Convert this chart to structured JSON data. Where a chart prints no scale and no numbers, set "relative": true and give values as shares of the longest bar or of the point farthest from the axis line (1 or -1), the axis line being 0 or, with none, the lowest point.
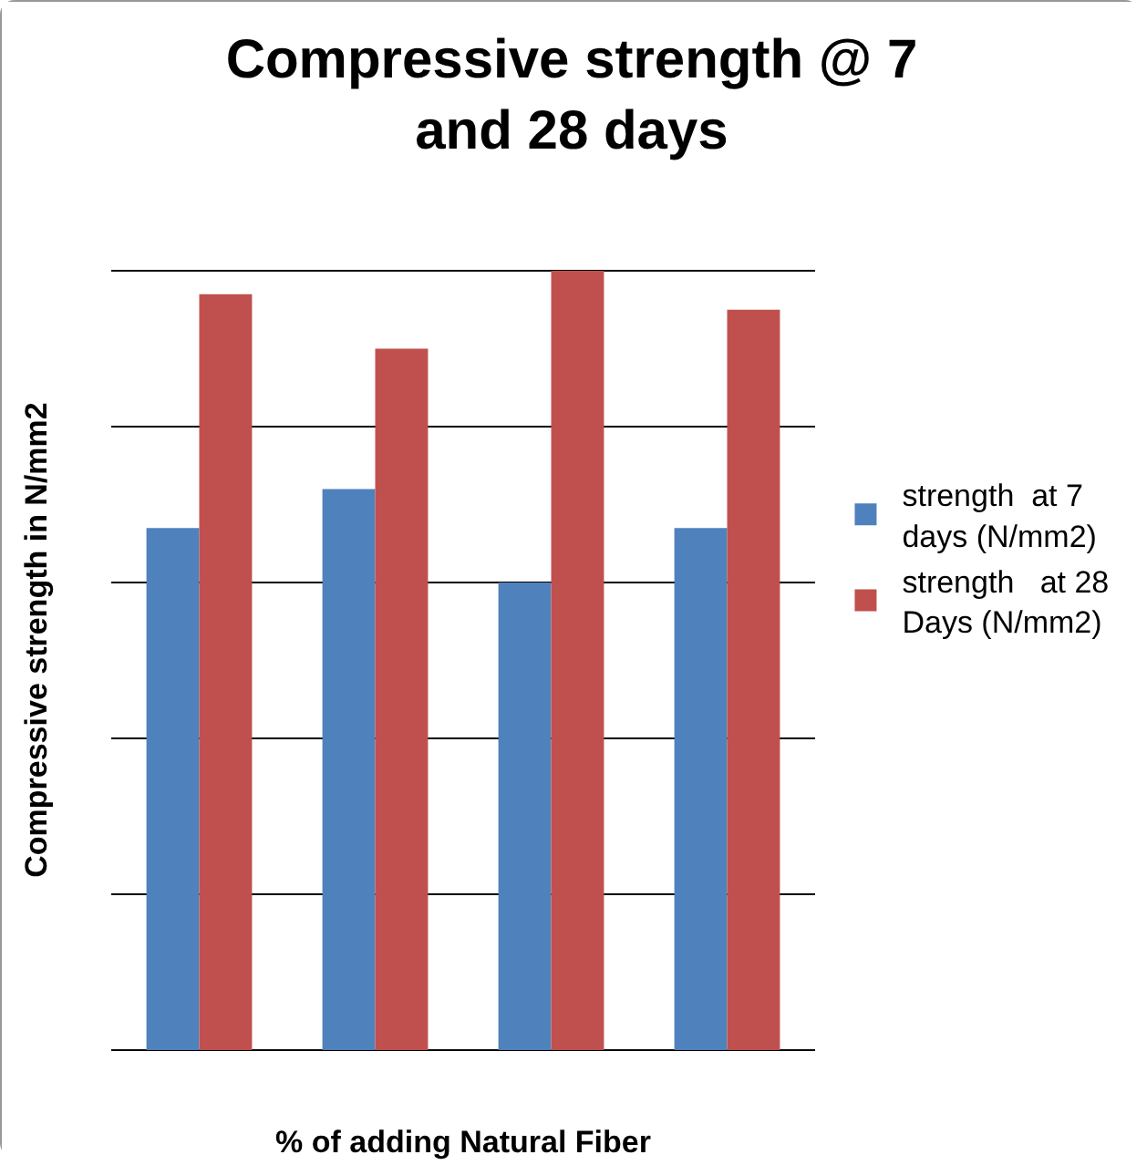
{
  "chart_data": {
    "type": "bar",
    "title": "Compressive strength @ 7 and 28 days",
    "xlabel": "% of adding Natural Fiber",
    "ylabel": "Compressive strength in N/mm2",
    "categories": [
      null,
      null,
      null,
      null
    ],
    "relative": true,
    "grid": "y",
    "legend": "right",
    "series": [
      {
        "name": "strength  at 7 days (N/mm2)",
        "color": "#4f81bd",
        "values": [
          0.67,
          0.72,
          0.6,
          0.67
        ]
      },
      {
        "name": "strength   at 28 Days (N/mm2)",
        "color": "#c0504d",
        "values": [
          0.97,
          0.9,
          1,
          0.95
        ]
      }
    ]
  }
}
